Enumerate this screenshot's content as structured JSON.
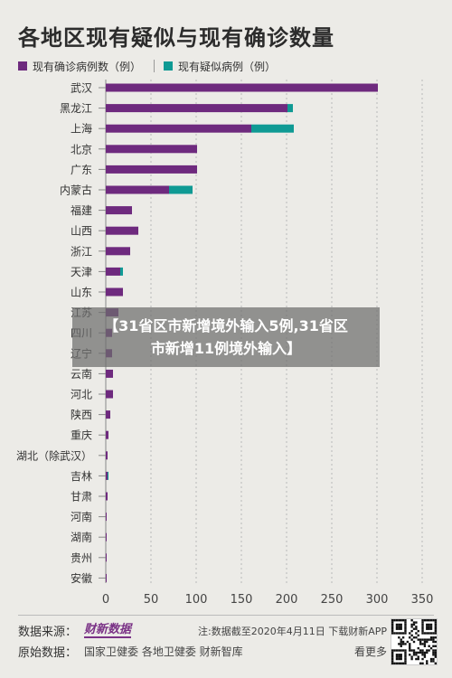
{
  "chart_data": {
    "type": "bar",
    "orientation": "horizontal",
    "stacked": true,
    "title": "各地区现有疑似与现有确诊数量",
    "categories": [
      "武汉",
      "黑龙江",
      "上海",
      "北京",
      "广东",
      "内蒙古",
      "福建",
      "山西",
      "浙江",
      "天津",
      "山东",
      "江苏",
      "四川",
      "辽宁",
      "云南",
      "河北",
      "陕西",
      "重庆",
      "湖北（除武汉）",
      "吉林",
      "甘肃",
      "河南",
      "湖南",
      "贵州",
      "安徽"
    ],
    "series": [
      {
        "name": "现有确诊病例数（例）",
        "color": "#6e2a7e",
        "values": [
          301,
          201,
          161,
          101,
          101,
          70,
          29,
          36,
          27,
          16,
          19,
          14,
          7,
          7,
          8,
          8,
          5,
          3,
          2,
          2,
          2,
          1,
          1,
          1,
          1
        ]
      },
      {
        "name": "现有疑似病例（例）",
        "color": "#0f9a94",
        "values": [
          0,
          6,
          47,
          0,
          0,
          26,
          0,
          0,
          0,
          3,
          0,
          0,
          0,
          0,
          0,
          0,
          0,
          0,
          0,
          1,
          0,
          0,
          0,
          0,
          0
        ]
      }
    ],
    "xlim": [
      0,
      350
    ],
    "xticks": [
      0,
      50,
      100,
      150,
      200,
      250,
      300,
      350
    ],
    "grid": "vertical-dotted",
    "legend": "top-left"
  },
  "overlay": {
    "line1": "【31省区市新增境外输入5例,31省区",
    "line2": "市新增11例境外输入】"
  },
  "footer": {
    "source_label": "数据来源：",
    "source_logo": "财新数据",
    "note": "注:数据截至2020年4月11日 下载财新APP",
    "original_label": "原始数据：",
    "original_sources": "国家卫健委 各地卫健委 财新智库",
    "more": "看更多"
  },
  "colors": {
    "background": "#ecebe7",
    "confirmed": "#6e2a7e",
    "suspected": "#0f9a94"
  }
}
